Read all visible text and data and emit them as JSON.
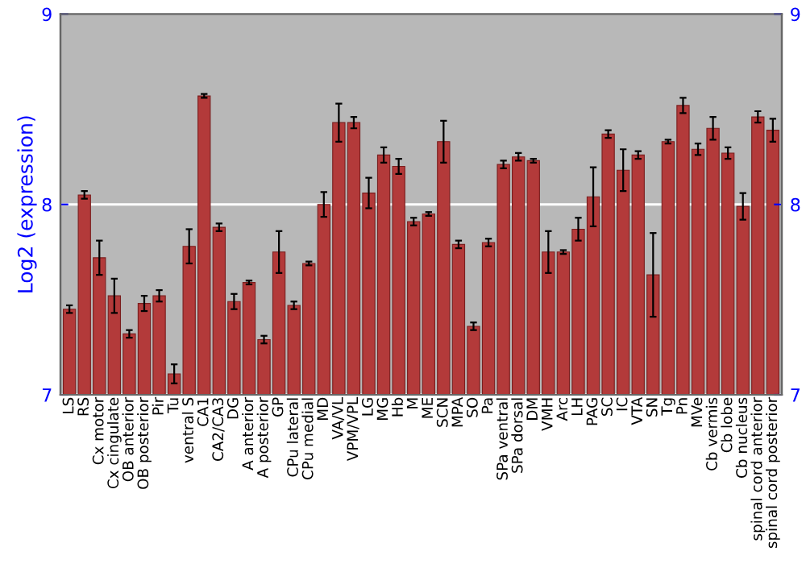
{
  "chart_data": {
    "type": "bar",
    "ylabel": "Log2 (expression)",
    "categories": [
      "LS",
      "RS",
      "Cx motor",
      "Cx cingulate",
      "OB anterior",
      "OB posterior",
      "Pir",
      "Tu",
      "ventral S",
      "CA1",
      "CA2/CA3",
      "DG",
      "A anterior",
      "A posterior",
      "GP",
      "CPu lateral",
      "CPu medial",
      "MD",
      "VA/VL",
      "VPM/VPL",
      "LG",
      "MG",
      "Hb",
      "M",
      "ME",
      "SCN",
      "MPA",
      "SO",
      "Pa",
      "SPa ventral",
      "SPa dorsal",
      "DM",
      "VMH",
      "Arc",
      "LH",
      "PAG",
      "SC",
      "IC",
      "VTA",
      "SN",
      "Tg",
      "Pn",
      "MVe",
      "Cb vermis",
      "Cb lobe",
      "Cb nucleus",
      "spinal cord anterior",
      "spinal cord posterior"
    ],
    "series": [
      {
        "color": "#b33a3a",
        "values": [
          7.45,
          8.05,
          7.72,
          7.52,
          7.32,
          7.48,
          7.52,
          7.11,
          7.78,
          8.57,
          7.88,
          7.49,
          7.59,
          7.29,
          7.75,
          7.47,
          7.69,
          8.0,
          8.43,
          8.43,
          8.06,
          8.26,
          8.2,
          7.91,
          7.95,
          8.33,
          7.79,
          7.36,
          7.8,
          8.21,
          8.25,
          8.23,
          7.75,
          7.75,
          7.87,
          8.04,
          8.37,
          8.18,
          8.26,
          7.63,
          8.33,
          8.52,
          8.29,
          8.4,
          8.27,
          7.99,
          8.46,
          8.39
        ],
        "errors": [
          0.02,
          0.02,
          0.09,
          0.09,
          0.02,
          0.04,
          0.03,
          0.05,
          0.09,
          0.01,
          0.02,
          0.04,
          0.01,
          0.02,
          0.11,
          0.02,
          0.01,
          0.065,
          0.1,
          0.03,
          0.08,
          0.04,
          0.04,
          0.02,
          0.01,
          0.11,
          0.02,
          0.02,
          0.02,
          0.02,
          0.02,
          0.01,
          0.11,
          0.01,
          0.06,
          0.155,
          0.02,
          0.11,
          0.02,
          0.22,
          0.01,
          0.04,
          0.03,
          0.06,
          0.03,
          0.07,
          0.03,
          0.06
        ]
      }
    ],
    "ylim": [
      7,
      9
    ],
    "yticks": [
      7,
      8,
      9
    ],
    "y2lim": [
      7,
      9
    ],
    "y2ticks": [
      7,
      8,
      9
    ],
    "grid": "y"
  }
}
